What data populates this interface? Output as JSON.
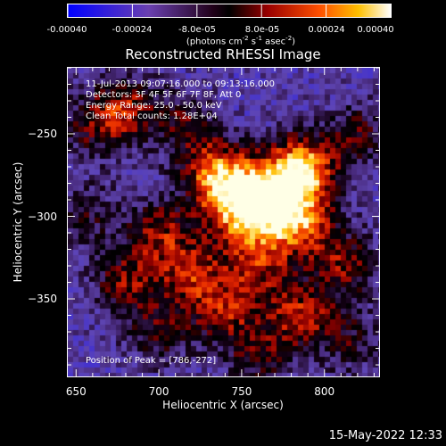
{
  "colorbar": {
    "ticks": [
      "-0.00040",
      "-0.00024",
      "-8.0e-05",
      "8.0e-05",
      "0.00024",
      "0.00040"
    ],
    "tick_values": [
      -0.0004,
      -0.00024,
      -8e-05,
      8e-05,
      0.00024,
      0.0004
    ],
    "range": [
      -0.0004,
      0.0004
    ],
    "label_main": "(photons cm",
    "label_e1": "-2",
    "label_mid": " s",
    "label_e2": "-1",
    "label_post": " asec",
    "label_e3": "-2",
    "label_close": ")"
  },
  "chart_data": {
    "type": "heatmap",
    "title": "Reconstructed RHESSI Image",
    "xlabel": "Heliocentric X (arcsec)",
    "ylabel": "Heliocentric Y (arcsec)",
    "xlim": [
      645,
      833
    ],
    "ylim": [
      -397,
      -210
    ],
    "xticks": [
      650,
      700,
      750,
      800
    ],
    "yticks": [
      -250,
      -300,
      -350
    ],
    "peak": [
      786,
      -272
    ],
    "annotations": [
      "11-Jul-2013 09:07:16.000 to 09:13:16.000",
      "Detectors: 3F 4F 5F 6F 7F 8F, Att 0",
      "Energy Range: 25.0 - 50.0 keV",
      "Clean      Total counts: 1.28E+04"
    ],
    "peak_text": "Position of Peak = [786,-272]",
    "sources": [
      {
        "x": 786,
        "y": -272,
        "w": 1.0
      },
      {
        "x": 735,
        "y": -275,
        "w": 0.8
      },
      {
        "x": 760,
        "y": -285,
        "w": 0.7
      },
      {
        "x": 772,
        "y": -300,
        "w": 0.6
      },
      {
        "x": 745,
        "y": -300,
        "w": 0.55
      },
      {
        "x": 790,
        "y": -305,
        "w": 0.5
      },
      {
        "x": 700,
        "y": -310,
        "w": 0.5
      },
      {
        "x": 720,
        "y": -335,
        "w": 0.55
      },
      {
        "x": 760,
        "y": -330,
        "w": 0.5
      },
      {
        "x": 680,
        "y": -340,
        "w": 0.45
      },
      {
        "x": 740,
        "y": -358,
        "w": 0.5
      },
      {
        "x": 785,
        "y": -360,
        "w": 0.55
      },
      {
        "x": 700,
        "y": -370,
        "w": 0.35
      },
      {
        "x": 680,
        "y": -235,
        "w": 0.5
      },
      {
        "x": 660,
        "y": -245,
        "w": 0.35
      },
      {
        "x": 715,
        "y": -245,
        "w": 0.35
      },
      {
        "x": 820,
        "y": -250,
        "w": 0.35
      },
      {
        "x": 812,
        "y": -330,
        "w": 0.45
      },
      {
        "x": 815,
        "y": -375,
        "w": 0.3
      },
      {
        "x": 760,
        "y": -385,
        "w": 0.35
      },
      {
        "x": 655,
        "y": -300,
        "w": 0.3
      }
    ]
  },
  "timestamp": "15-May-2022 12:33"
}
